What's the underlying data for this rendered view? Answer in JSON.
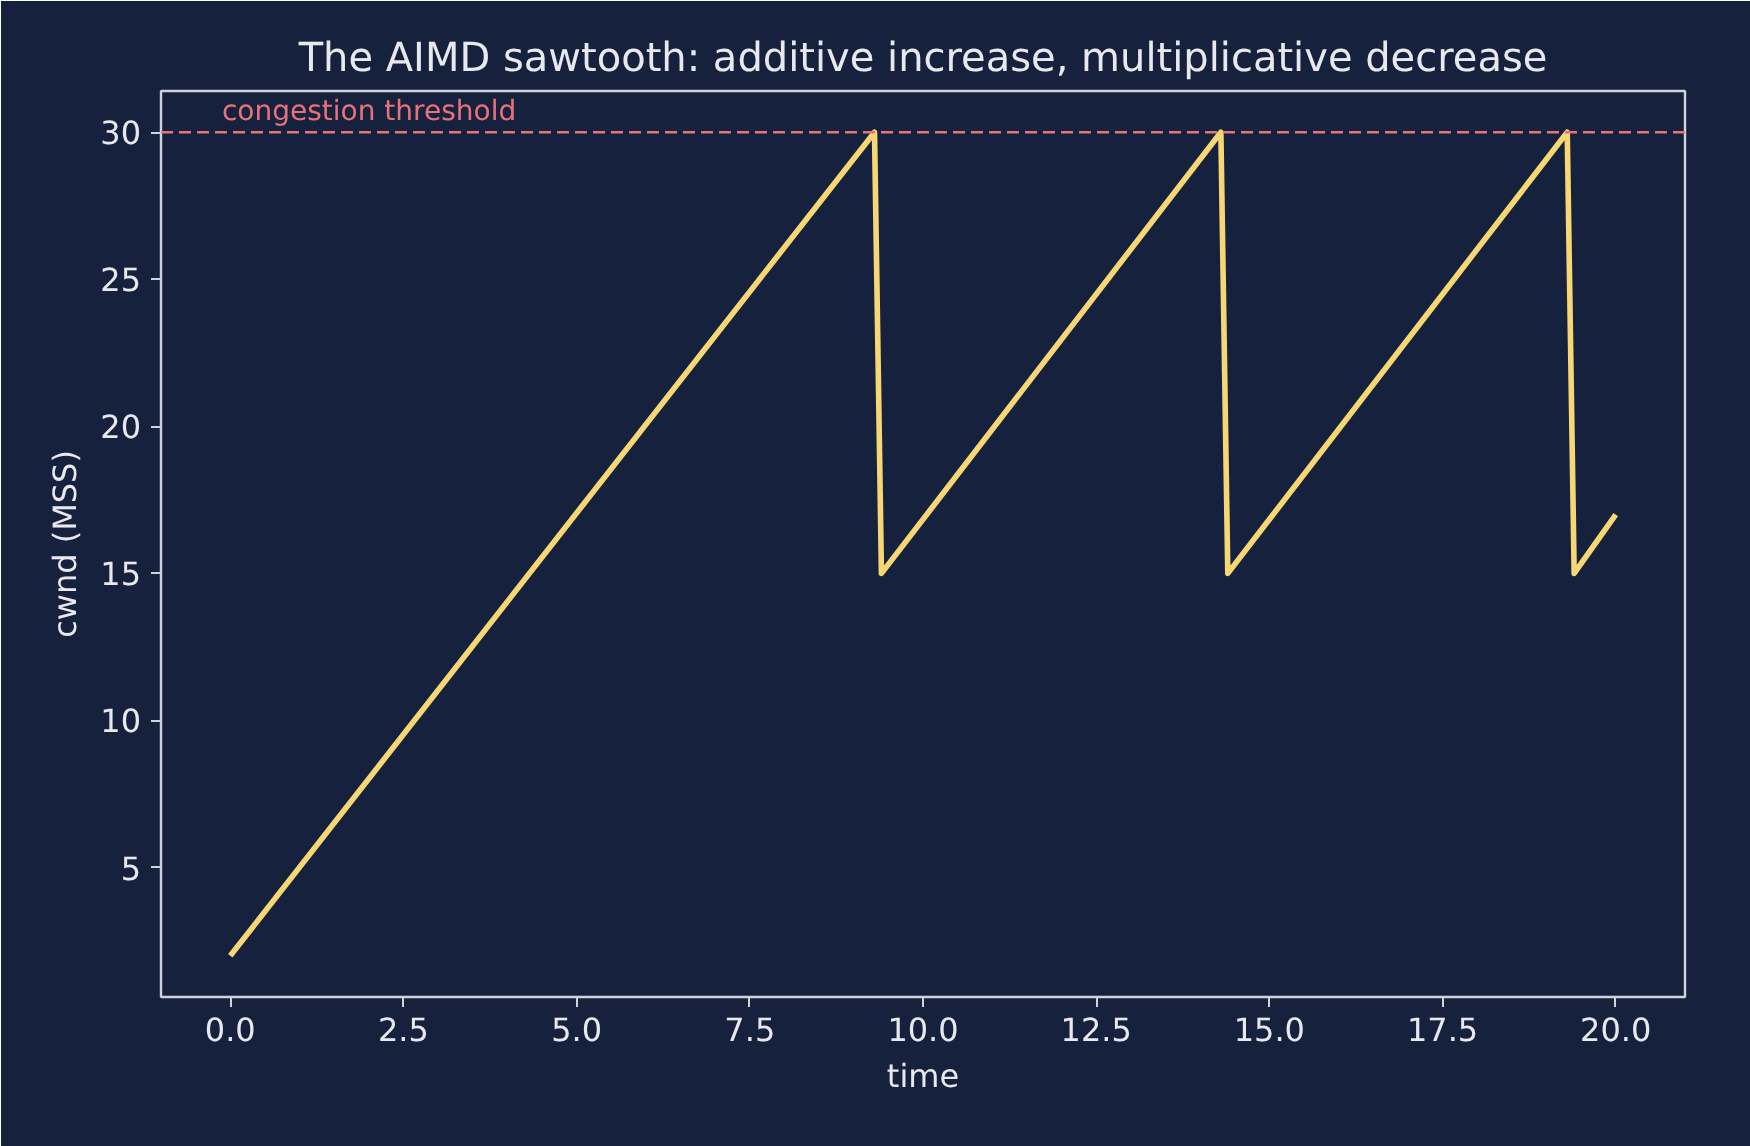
{
  "chart_data": {
    "type": "line",
    "title": "The AIMD sawtooth: additive increase, multiplicative decrease",
    "xlabel": "time",
    "ylabel": "cwnd (MSS)",
    "x": [
      0,
      9.3,
      9.4,
      14.3,
      14.4,
      19.3,
      19.4,
      20
    ],
    "series": [
      {
        "color": "#f7d774",
        "values": [
          2,
          30,
          15,
          30,
          15,
          30,
          15,
          17
        ]
      }
    ],
    "xlim": [
      -1,
      21
    ],
    "ylim": [
      0.6,
      31.4
    ],
    "xticks": [
      {
        "value": 0,
        "label": "0.0"
      },
      {
        "value": 2.5,
        "label": "2.5"
      },
      {
        "value": 5,
        "label": "5.0"
      },
      {
        "value": 7.5,
        "label": "7.5"
      },
      {
        "value": 10,
        "label": "10.0"
      },
      {
        "value": 12.5,
        "label": "12.5"
      },
      {
        "value": 15,
        "label": "15.0"
      },
      {
        "value": 17.5,
        "label": "17.5"
      },
      {
        "value": 20,
        "label": "20.0"
      }
    ],
    "yticks": [
      5,
      10,
      15,
      20,
      25,
      30
    ],
    "ref_lines": [
      {
        "axis": "y",
        "value": 30,
        "label": "congestion threshold",
        "color": "#e8727a",
        "line_style": "dashed"
      }
    ],
    "grid": false,
    "marker": "none",
    "line_style": "solid"
  }
}
